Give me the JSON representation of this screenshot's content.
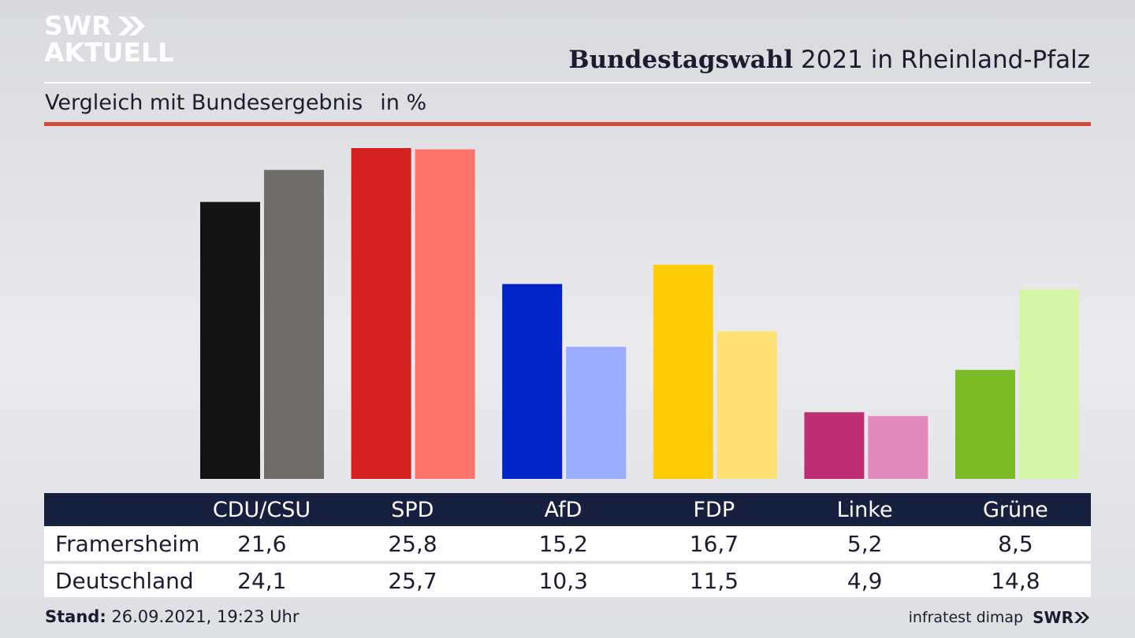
{
  "logo": {
    "line1": "SWR",
    "line2": "AKTUELL"
  },
  "header": {
    "title_bold": "Bundestagswahl",
    "title_rest": " 2021 in Rheinland-Pfalz"
  },
  "subtitle": {
    "text": "Vergleich mit Bundesergebnis",
    "unit": "in %"
  },
  "chart_data": {
    "type": "bar",
    "title": "Bundestagswahl 2021 in Rheinland-Pfalz",
    "subtitle": "Vergleich mit Bundesergebnis in %",
    "categories": [
      "CDU/CSU",
      "SPD",
      "AfD",
      "FDP",
      "Linke",
      "Grüne"
    ],
    "series": [
      {
        "name": "Framersheim",
        "values": [
          21.6,
          25.8,
          15.2,
          16.7,
          5.2,
          8.5
        ],
        "display": [
          "21,6",
          "25,8",
          "15,2",
          "16,7",
          "5,2",
          "8,5"
        ]
      },
      {
        "name": "Deutschland",
        "values": [
          24.1,
          25.7,
          10.3,
          11.5,
          4.9,
          14.8
        ],
        "display": [
          "24,1",
          "25,7",
          "10,3",
          "11,5",
          "4,9",
          "14,8"
        ]
      }
    ],
    "colors": {
      "primary": [
        "#141414",
        "#d42020",
        "#0024c8",
        "#ffcc08",
        "#bd2e72",
        "#7aba24"
      ],
      "secondary": [
        "#6f6e6c",
        "#fc746c",
        "#9cacfc",
        "#fde072",
        "#e189bb",
        "#d5f6a8"
      ]
    },
    "ylim": [
      0,
      26
    ],
    "xlabel": "",
    "ylabel": ""
  },
  "footer": {
    "stand_label": "Stand:",
    "stand_value": " 26.09.2021, 19:23 Uhr",
    "source": "infratest dimap",
    "brand": "SWR"
  },
  "theme": {
    "accent": "#d04a3c",
    "table_header": "#17213f"
  }
}
